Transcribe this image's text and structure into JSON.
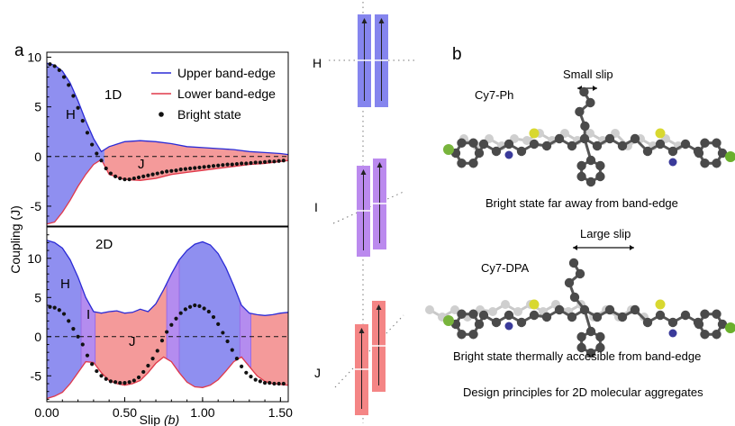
{
  "panel_a_label": "a",
  "panel_b_label": "b",
  "legend": [
    {
      "label": "Upper band-edge",
      "color": "#2b2bd6",
      "kind": "line"
    },
    {
      "label": "Lower band-edge",
      "color": "#e0394a",
      "kind": "line"
    },
    {
      "label": "Bright state",
      "color": "#111111",
      "kind": "dot"
    }
  ],
  "colors": {
    "upper_line": "#2b2bd6",
    "lower_line": "#e0394a",
    "h_fill": "#8f8ff0",
    "j_fill": "#f49a9a",
    "i_fill": "#b48cef",
    "axis": "#000000"
  },
  "chart_data": [
    {
      "type": "area",
      "region_label": "1D",
      "xlim": [
        0,
        1.55
      ],
      "ylim": [
        -7,
        10.5
      ],
      "yticks": [
        10,
        5,
        0,
        -5
      ],
      "ytick_labels": [
        "10",
        "5",
        "0",
        "-5"
      ],
      "grid": false,
      "legend_position": "top-right",
      "zone_labels": [
        "H",
        "J"
      ],
      "series": [
        {
          "name": "Upper band-edge",
          "x": [
            0,
            0.05,
            0.1,
            0.15,
            0.2,
            0.25,
            0.3,
            0.35,
            0.4,
            0.5,
            0.6,
            0.7,
            0.8,
            0.9,
            1.0,
            1.1,
            1.2,
            1.3,
            1.4,
            1.5,
            1.55
          ],
          "y": [
            9.4,
            9.2,
            8.6,
            7.4,
            5.6,
            3.6,
            1.8,
            0.5,
            1.0,
            1.5,
            1.6,
            1.5,
            1.3,
            1.0,
            0.9,
            0.8,
            0.7,
            0.5,
            0.4,
            0.3,
            0.2
          ]
        },
        {
          "name": "Lower band-edge",
          "x": [
            0,
            0.05,
            0.1,
            0.15,
            0.2,
            0.25,
            0.3,
            0.35,
            0.4,
            0.5,
            0.6,
            0.7,
            0.8,
            0.9,
            1.0,
            1.1,
            1.2,
            1.3,
            1.4,
            1.5,
            1.55
          ],
          "y": [
            -6.8,
            -6.6,
            -5.6,
            -4.4,
            -3.0,
            -1.8,
            -0.8,
            -0.3,
            -1.8,
            -2.3,
            -2.4,
            -2.2,
            -1.8,
            -1.6,
            -1.4,
            -1.2,
            -1.0,
            -0.8,
            -0.7,
            -0.5,
            -0.4
          ]
        },
        {
          "name": "Bright state",
          "x": [
            0.02,
            0.05,
            0.08,
            0.11,
            0.14,
            0.17,
            0.2,
            0.23,
            0.26,
            0.29,
            0.32,
            0.35,
            0.38,
            0.41,
            0.44,
            0.47,
            0.5,
            0.53,
            0.56,
            0.59,
            0.62,
            0.65,
            0.68,
            0.71,
            0.74,
            0.77,
            0.8,
            0.83,
            0.86,
            0.89,
            0.92,
            0.95,
            0.98,
            1.01,
            1.04,
            1.07,
            1.1,
            1.13,
            1.16,
            1.19,
            1.22,
            1.25,
            1.28,
            1.31,
            1.34,
            1.37,
            1.4,
            1.43,
            1.46,
            1.49,
            1.52
          ],
          "y": [
            9.3,
            9.1,
            8.7,
            8.0,
            7.2,
            6.1,
            4.9,
            3.6,
            2.4,
            1.2,
            0.3,
            -0.4,
            -1.2,
            -1.7,
            -2.0,
            -2.2,
            -2.3,
            -2.3,
            -2.2,
            -2.1,
            -2.0,
            -1.9,
            -1.8,
            -1.7,
            -1.6,
            -1.5,
            -1.45,
            -1.4,
            -1.3,
            -1.25,
            -1.2,
            -1.15,
            -1.1,
            -1.05,
            -1.0,
            -0.95,
            -0.9,
            -0.85,
            -0.8,
            -0.8,
            -0.75,
            -0.7,
            -0.7,
            -0.65,
            -0.6,
            -0.6,
            -0.55,
            -0.5,
            -0.5,
            -0.45,
            -0.4
          ]
        }
      ]
    },
    {
      "type": "area",
      "region_label": "2D",
      "xlim": [
        0,
        1.55
      ],
      "ylim": [
        -8.3,
        14
      ],
      "xticks": [
        0,
        0.5,
        1.0,
        1.5
      ],
      "xtick_labels": [
        "0.00",
        "0.50",
        "1.00",
        "1.50"
      ],
      "yticks": [
        10,
        5,
        0,
        -5
      ],
      "ytick_labels": [
        "10",
        "5",
        "0",
        "-5"
      ],
      "xlabel": "Slip",
      "xlabel_unit": "(b)",
      "ylabel": "Coupling (J)",
      "grid": false,
      "zone_labels": [
        "H",
        "I",
        "J"
      ],
      "series": [
        {
          "name": "Upper band-edge",
          "x": [
            0,
            0.05,
            0.1,
            0.15,
            0.2,
            0.25,
            0.3,
            0.35,
            0.4,
            0.45,
            0.5,
            0.55,
            0.6,
            0.65,
            0.7,
            0.75,
            0.8,
            0.85,
            0.9,
            0.95,
            1.0,
            1.05,
            1.1,
            1.15,
            1.2,
            1.25,
            1.3,
            1.35,
            1.4,
            1.45,
            1.5,
            1.55
          ],
          "y": [
            12.3,
            12.0,
            11.3,
            9.8,
            7.6,
            5.0,
            3.2,
            3.0,
            3.2,
            3.3,
            3.0,
            3.1,
            3.5,
            3.2,
            4.2,
            6.0,
            8.0,
            9.8,
            11.0,
            11.8,
            12.1,
            11.7,
            10.6,
            8.8,
            6.5,
            4.0,
            3.0,
            2.8,
            2.7,
            2.8,
            3.0,
            3.1
          ]
        },
        {
          "name": "Lower band-edge",
          "x": [
            0,
            0.05,
            0.1,
            0.15,
            0.2,
            0.25,
            0.3,
            0.35,
            0.4,
            0.45,
            0.5,
            0.55,
            0.6,
            0.65,
            0.7,
            0.75,
            0.8,
            0.85,
            0.9,
            0.95,
            1.0,
            1.05,
            1.1,
            1.15,
            1.2,
            1.25,
            1.3,
            1.35,
            1.4,
            1.45,
            1.5,
            1.55
          ],
          "y": [
            -7.9,
            -7.6,
            -7.1,
            -6.0,
            -4.6,
            -3.2,
            -3.3,
            -4.6,
            -5.6,
            -6.0,
            -6.2,
            -6.0,
            -5.6,
            -4.6,
            -3.4,
            -2.6,
            -3.2,
            -4.6,
            -5.8,
            -6.4,
            -6.5,
            -6.2,
            -5.5,
            -4.4,
            -3.2,
            -2.6,
            -3.8,
            -5.0,
            -5.7,
            -6.0,
            -6.1,
            -6.2
          ]
        },
        {
          "name": "Bright state",
          "x": [
            0.02,
            0.05,
            0.08,
            0.11,
            0.14,
            0.17,
            0.2,
            0.23,
            0.26,
            0.29,
            0.32,
            0.35,
            0.38,
            0.41,
            0.44,
            0.47,
            0.5,
            0.53,
            0.56,
            0.59,
            0.62,
            0.65,
            0.68,
            0.71,
            0.74,
            0.77,
            0.8,
            0.83,
            0.86,
            0.89,
            0.92,
            0.95,
            0.98,
            1.01,
            1.04,
            1.07,
            1.1,
            1.13,
            1.16,
            1.19,
            1.22,
            1.25,
            1.28,
            1.31,
            1.34,
            1.37,
            1.4,
            1.43,
            1.46,
            1.49,
            1.52
          ],
          "y": [
            3.8,
            3.7,
            3.4,
            2.9,
            2.0,
            1.0,
            0.0,
            -1.0,
            -2.4,
            -3.5,
            -4.4,
            -5.0,
            -5.4,
            -5.7,
            -5.8,
            -5.9,
            -5.9,
            -5.8,
            -5.6,
            -5.2,
            -4.5,
            -3.7,
            -2.8,
            -1.8,
            -0.5,
            0.6,
            1.5,
            2.3,
            3.0,
            3.5,
            3.8,
            4.0,
            3.9,
            3.6,
            3.2,
            2.5,
            1.6,
            0.5,
            -0.6,
            -1.7,
            -2.8,
            -3.8,
            -4.6,
            -5.1,
            -5.5,
            -5.7,
            -5.9,
            -5.9,
            -6.0,
            -6.0,
            -6.0
          ]
        }
      ]
    }
  ],
  "schematics": [
    {
      "label": "H",
      "color": "#8585ee"
    },
    {
      "label": "I",
      "color": "#bb8aee"
    },
    {
      "label": "J",
      "color": "#f48585"
    }
  ],
  "molecules": [
    {
      "name": "Cy7-Ph",
      "slip_label": "Small slip",
      "caption": "Bright state far away from band-edge"
    },
    {
      "name": "Cy7-DPA",
      "slip_label": "Large slip",
      "caption": "Bright state thermally accesible from band-edge"
    }
  ],
  "footer": "Design principles for 2D molecular aggregates"
}
